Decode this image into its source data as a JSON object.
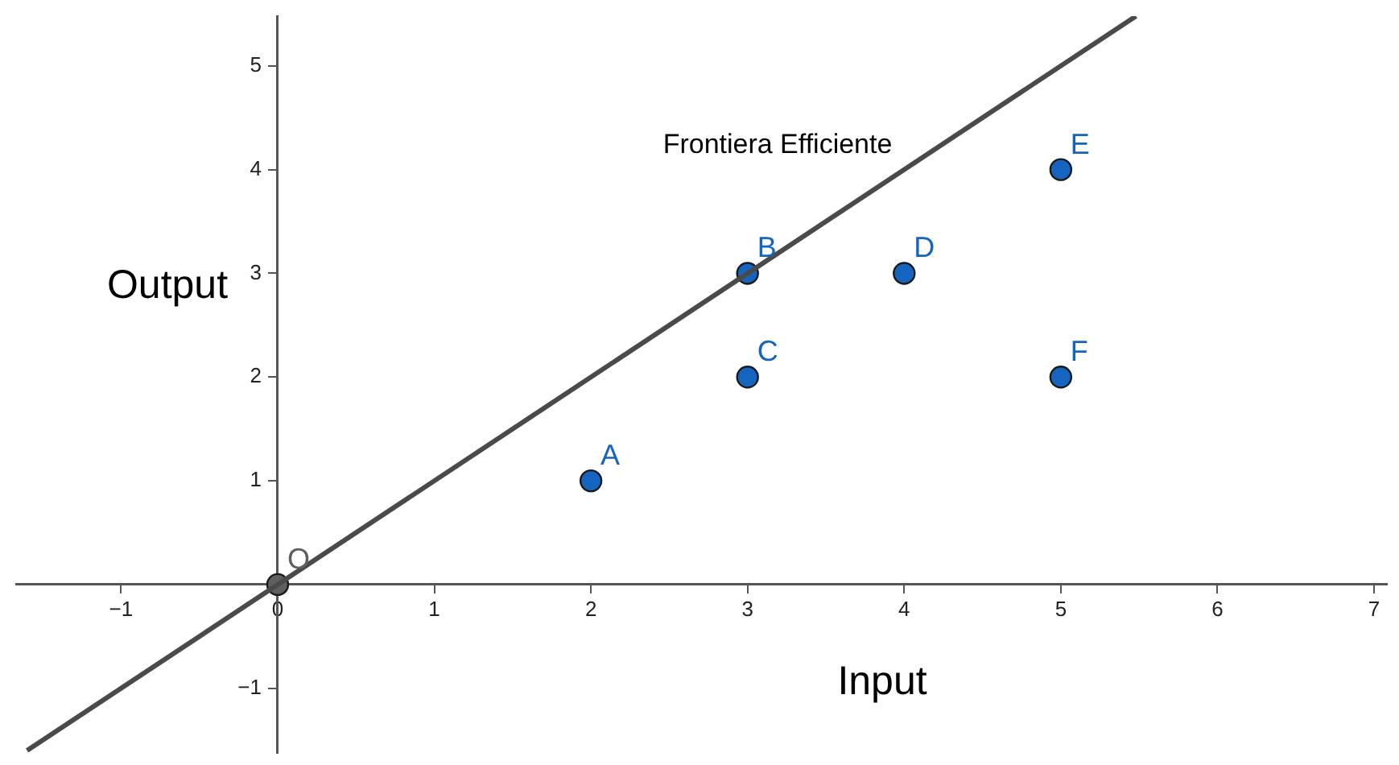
{
  "chart_data": {
    "type": "scatter",
    "xlabel": "Input",
    "ylabel": "Output",
    "xlim": [
      -1.67,
      7.08
    ],
    "ylim": [
      -1.62,
      5.48
    ],
    "xticks": [
      -1,
      0,
      1,
      2,
      3,
      4,
      5,
      6,
      7
    ],
    "yticks": [
      -1,
      1,
      2,
      3,
      4,
      5
    ],
    "grid": false,
    "legend": false,
    "marker": "circle",
    "series": [
      {
        "type": "line",
        "color": "#4a4a4a",
        "marker": "none",
        "x": [
          -1.6,
          5.48
        ],
        "values": [
          -1.6,
          5.48
        ]
      },
      {
        "type": "scatter",
        "color": "#1565c0",
        "x": [
          2,
          3,
          3,
          4,
          5,
          5
        ],
        "values": [
          1,
          3,
          2,
          3,
          4,
          2
        ]
      },
      {
        "type": "scatter",
        "color": "#5f5f5f",
        "x": [
          0
        ],
        "values": [
          0
        ]
      }
    ],
    "annotations": [
      {
        "text": "A",
        "x": 2,
        "y": 1
      },
      {
        "text": "B",
        "x": 3,
        "y": 3
      },
      {
        "text": "C",
        "x": 3,
        "y": 2
      },
      {
        "text": "D",
        "x": 4,
        "y": 3
      },
      {
        "text": "E",
        "x": 5,
        "y": 4
      },
      {
        "text": "F",
        "x": 5,
        "y": 2
      },
      {
        "text": "O",
        "x": 0,
        "y": 0
      },
      "Frontiera Efficiente"
    ]
  }
}
